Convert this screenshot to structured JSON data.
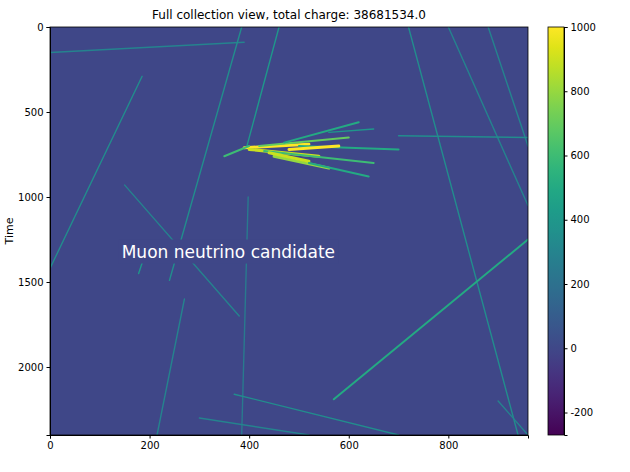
{
  "chart_data": {
    "type": "heatmap",
    "title": "Full collection view, total charge: 38681534.0",
    "y_label": "Time",
    "annotation": "Muon neutrino candidate",
    "color": "viridis",
    "xlim": [
      0,
      960
    ],
    "ylim": [
      2400,
      0
    ],
    "xticks": [
      0,
      200,
      400,
      600,
      800
    ],
    "yticks": [
      0,
      500,
      1000,
      1500,
      2000
    ],
    "colorbar_range": [
      -270,
      1000
    ],
    "colorbar_ticks": [
      -200,
      0,
      200,
      400,
      600,
      800,
      1000
    ],
    "background": 0,
    "tracks": [
      {
        "x": [
          0,
          390
        ],
        "y": [
          150,
          90
        ],
        "charge": 300
      },
      {
        "x": [
          0,
          185
        ],
        "y": [
          1420,
          290
        ],
        "charge": 350
      },
      {
        "x": [
          150,
          380
        ],
        "y": [
          930,
          1700
        ],
        "charge": 300
      },
      {
        "x": [
          240,
          385
        ],
        "y": [
          1490,
          0
        ],
        "charge": 350
      },
      {
        "x": [
          215,
          270
        ],
        "y": [
          2400,
          1600
        ],
        "charge": 300
      },
      {
        "x": [
          178,
          195
        ],
        "y": [
          1450,
          1300
        ],
        "charge": 400
      },
      {
        "x": [
          395,
          460
        ],
        "y": [
          705,
          0
        ],
        "charge": 400
      },
      {
        "x": [
          398,
          385
        ],
        "y": [
          1000,
          2400
        ],
        "charge": 250
      },
      {
        "x": [
          720,
          940
        ],
        "y": [
          0,
          2400
        ],
        "charge": 350
      },
      {
        "x": [
          800,
          960
        ],
        "y": [
          0,
          1050
        ],
        "charge": 300
      },
      {
        "x": [
          880,
          960
        ],
        "y": [
          0,
          700
        ],
        "charge": 300
      },
      {
        "x": [
          570,
          960
        ],
        "y": [
          2190,
          1250
        ],
        "charge": 500
      },
      {
        "x": [
          370,
          700
        ],
        "y": [
          2160,
          2400
        ],
        "charge": 350
      },
      {
        "x": [
          300,
          520
        ],
        "y": [
          2300,
          2400
        ],
        "charge": 300
      },
      {
        "x": [
          700,
          960
        ],
        "y": [
          640,
          650
        ],
        "charge": 350
      },
      {
        "x": [
          900,
          960
        ],
        "y": [
          2200,
          2400
        ],
        "charge": 300
      },
      {
        "x": [
          390,
          520
        ],
        "y": [
          710,
          690
        ],
        "charge": 1000
      },
      {
        "x": [
          400,
          540
        ],
        "y": [
          720,
          760
        ],
        "charge": 900
      },
      {
        "x": [
          420,
          600
        ],
        "y": [
          700,
          650
        ],
        "charge": 700
      },
      {
        "x": [
          430,
          650
        ],
        "y": [
          730,
          800
        ],
        "charge": 600
      },
      {
        "x": [
          450,
          560
        ],
        "y": [
          760,
          830
        ],
        "charge": 800
      },
      {
        "x": [
          470,
          620
        ],
        "y": [
          680,
          560
        ],
        "charge": 500
      },
      {
        "x": [
          500,
          700
        ],
        "y": [
          700,
          720
        ],
        "charge": 500
      },
      {
        "x": [
          480,
          580
        ],
        "y": [
          720,
          700
        ],
        "charge": 1000
      },
      {
        "x": [
          440,
          520
        ],
        "y": [
          740,
          790
        ],
        "charge": 900
      },
      {
        "x": [
          520,
          640
        ],
        "y": [
          800,
          880
        ],
        "charge": 500
      },
      {
        "x": [
          560,
          650
        ],
        "y": [
          620,
          600
        ],
        "charge": 400
      },
      {
        "x": [
          400,
          350
        ],
        "y": [
          700,
          760
        ],
        "charge": 600
      }
    ]
  }
}
